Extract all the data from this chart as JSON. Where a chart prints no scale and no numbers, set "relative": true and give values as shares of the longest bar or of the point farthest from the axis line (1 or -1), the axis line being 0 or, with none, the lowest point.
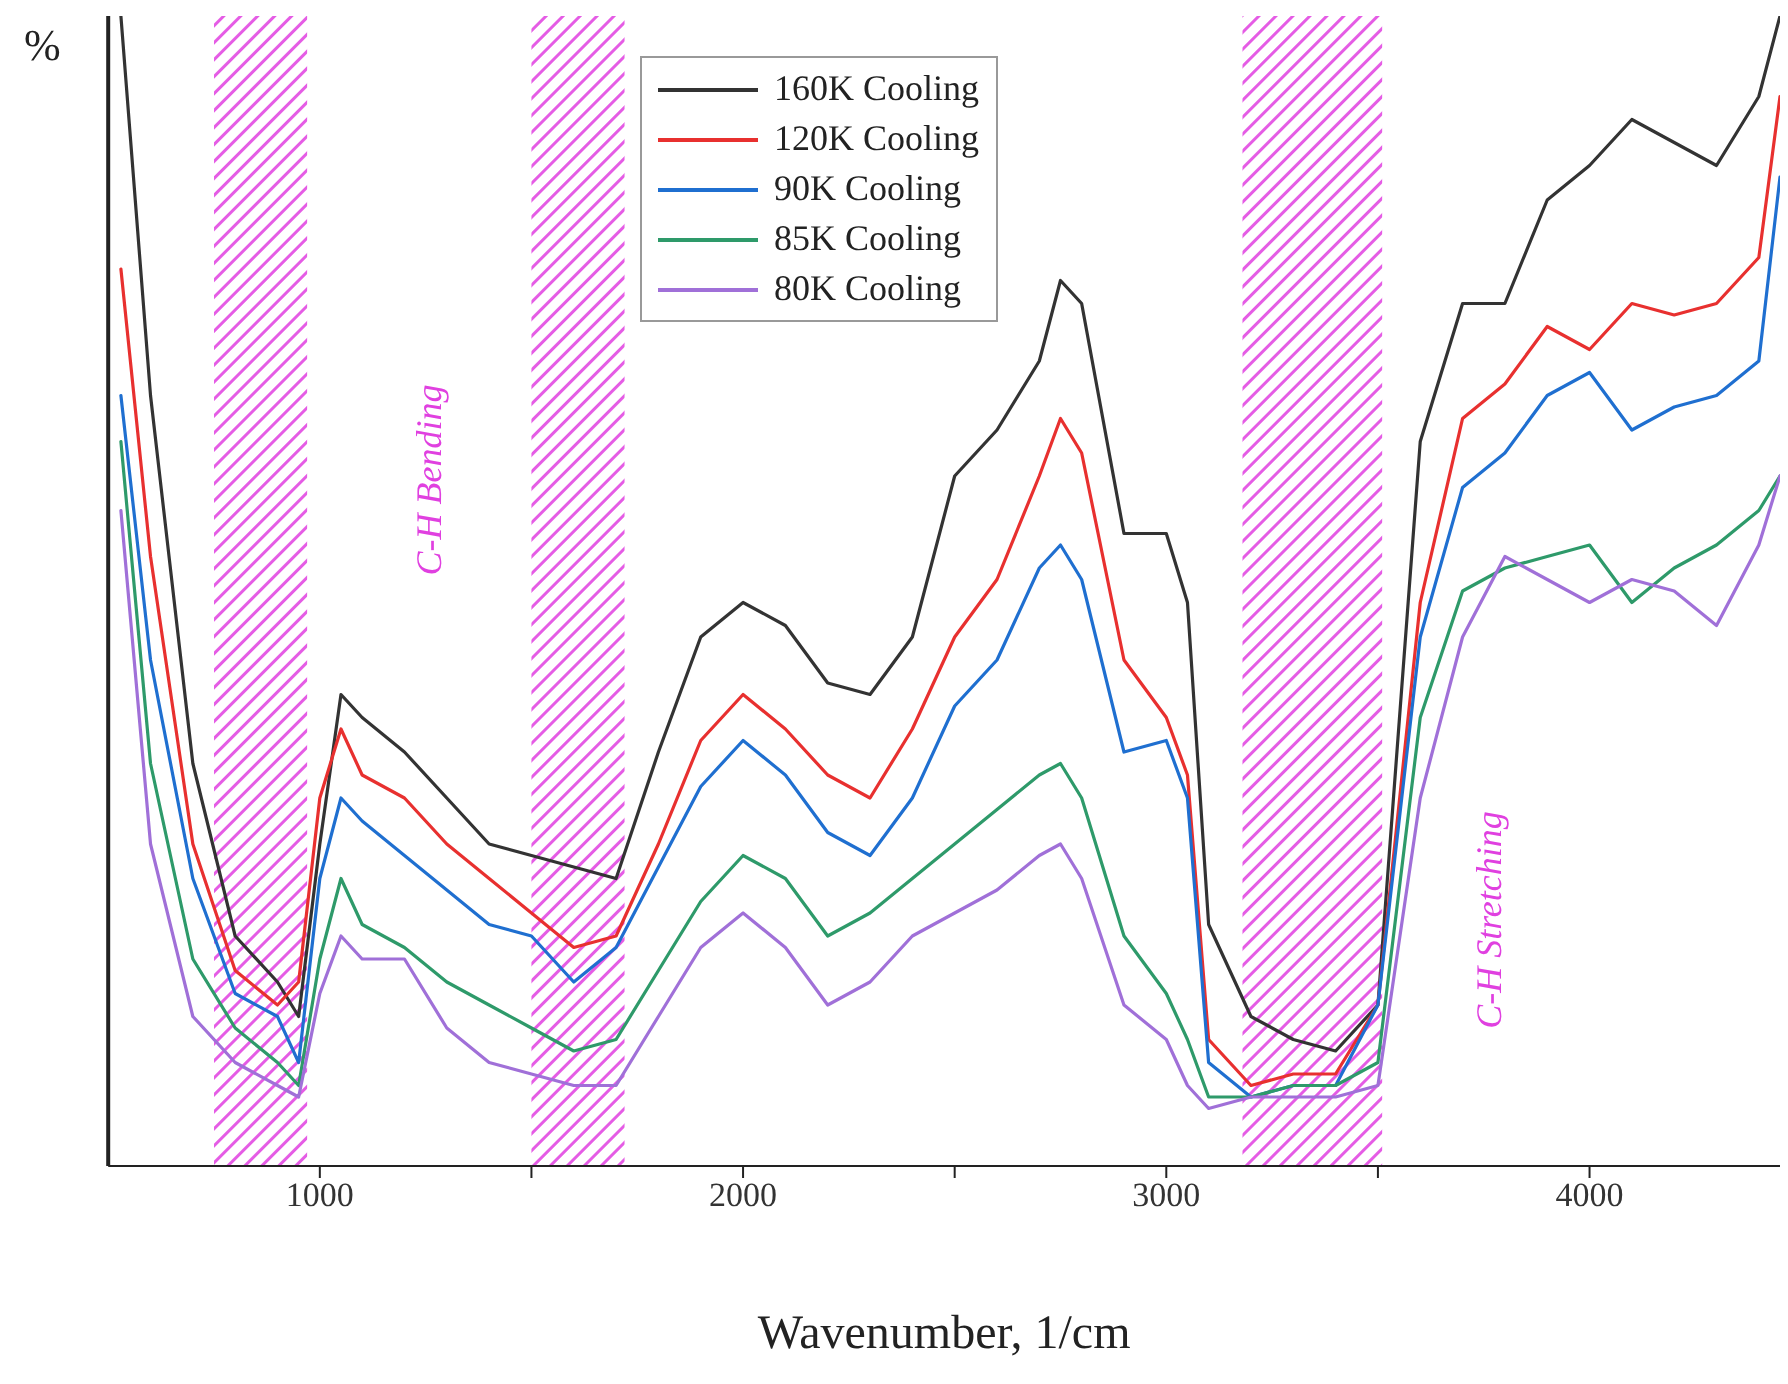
{
  "chart_data": {
    "type": "line",
    "relative": true,
    "xlabel": "Wavenumber, 1/cm",
    "ylabel": "%",
    "legend": "top",
    "xlim": [
      500,
      4450
    ],
    "xticks": [
      1000,
      {
        "value": 1500,
        "label": null
      },
      2000,
      {
        "value": 2500,
        "label": null
      },
      3000,
      {
        "value": 3500,
        "label": null
      },
      4000
    ],
    "x": [
      530,
      600,
      700,
      800,
      900,
      950,
      1000,
      1050,
      1100,
      1200,
      1300,
      1400,
      1500,
      1600,
      1700,
      1800,
      1900,
      2000,
      2100,
      2200,
      2300,
      2400,
      2500,
      2600,
      2700,
      2750,
      2800,
      2900,
      3000,
      3050,
      3100,
      3200,
      3300,
      3400,
      3500,
      3600,
      3700,
      3800,
      3900,
      4000,
      4100,
      4200,
      4300,
      4400,
      4450
    ],
    "series": [
      {
        "name": "160K Cooling",
        "color": "#333333",
        "values": [
          1.0,
          0.67,
          0.35,
          0.2,
          0.16,
          0.13,
          0.28,
          0.41,
          0.39,
          0.36,
          0.32,
          0.28,
          0.27,
          0.26,
          0.25,
          0.36,
          0.46,
          0.49,
          0.47,
          0.42,
          0.41,
          0.46,
          0.6,
          0.64,
          0.7,
          0.77,
          0.75,
          0.55,
          0.55,
          0.49,
          0.21,
          0.13,
          0.11,
          0.1,
          0.14,
          0.63,
          0.75,
          0.75,
          0.84,
          0.87,
          0.91,
          0.89,
          0.87,
          0.93,
          1.0
        ]
      },
      {
        "name": "120K Cooling",
        "color": "#e8302f",
        "values": [
          0.78,
          0.53,
          0.28,
          0.17,
          0.14,
          0.16,
          0.32,
          0.38,
          0.34,
          0.32,
          0.28,
          0.25,
          0.22,
          0.19,
          0.2,
          0.28,
          0.37,
          0.41,
          0.38,
          0.34,
          0.32,
          0.38,
          0.46,
          0.51,
          0.6,
          0.65,
          0.62,
          0.44,
          0.39,
          0.34,
          0.11,
          0.07,
          0.08,
          0.08,
          0.14,
          0.49,
          0.65,
          0.68,
          0.73,
          0.71,
          0.75,
          0.74,
          0.75,
          0.79,
          0.93
        ]
      },
      {
        "name": "90K Cooling",
        "color": "#1f6fd0",
        "values": [
          0.67,
          0.44,
          0.25,
          0.15,
          0.13,
          0.09,
          0.25,
          0.32,
          0.3,
          0.27,
          0.24,
          0.21,
          0.2,
          0.16,
          0.19,
          0.26,
          0.33,
          0.37,
          0.34,
          0.29,
          0.27,
          0.32,
          0.4,
          0.44,
          0.52,
          0.54,
          0.51,
          0.36,
          0.37,
          0.32,
          0.09,
          0.06,
          0.07,
          0.07,
          0.14,
          0.46,
          0.59,
          0.62,
          0.67,
          0.69,
          0.64,
          0.66,
          0.67,
          0.7,
          0.86
        ]
      },
      {
        "name": "85K Cooling",
        "color": "#2e9a6a",
        "values": [
          0.63,
          0.35,
          0.18,
          0.12,
          0.09,
          0.07,
          0.18,
          0.25,
          0.21,
          0.19,
          0.16,
          0.14,
          0.12,
          0.1,
          0.11,
          0.17,
          0.23,
          0.27,
          0.25,
          0.2,
          0.22,
          0.25,
          0.28,
          0.31,
          0.34,
          0.35,
          0.32,
          0.2,
          0.15,
          0.11,
          0.06,
          0.06,
          0.07,
          0.07,
          0.09,
          0.39,
          0.5,
          0.52,
          0.53,
          0.54,
          0.49,
          0.52,
          0.54,
          0.57,
          0.6
        ]
      },
      {
        "name": "80K Cooling",
        "color": "#a070d8",
        "values": [
          0.57,
          0.28,
          0.13,
          0.09,
          0.07,
          0.06,
          0.15,
          0.2,
          0.18,
          0.18,
          0.12,
          0.09,
          0.08,
          0.07,
          0.07,
          0.13,
          0.19,
          0.22,
          0.19,
          0.14,
          0.16,
          0.2,
          0.22,
          0.24,
          0.27,
          0.28,
          0.25,
          0.14,
          0.11,
          0.07,
          0.05,
          0.06,
          0.06,
          0.06,
          0.07,
          0.32,
          0.46,
          0.53,
          0.51,
          0.49,
          0.51,
          0.5,
          0.47,
          0.54,
          0.6
        ]
      }
    ],
    "bands": [
      {
        "axis": "x",
        "from": 750,
        "to": 970,
        "color": "#e040e0"
      },
      {
        "axis": "x",
        "from": 1500,
        "to": 1720,
        "color": "#e040e0"
      },
      {
        "axis": "x",
        "from": 3180,
        "to": 3510,
        "color": "#e040e0"
      }
    ],
    "annotations": [
      "C-H Bending",
      "C-H Stretching"
    ]
  }
}
